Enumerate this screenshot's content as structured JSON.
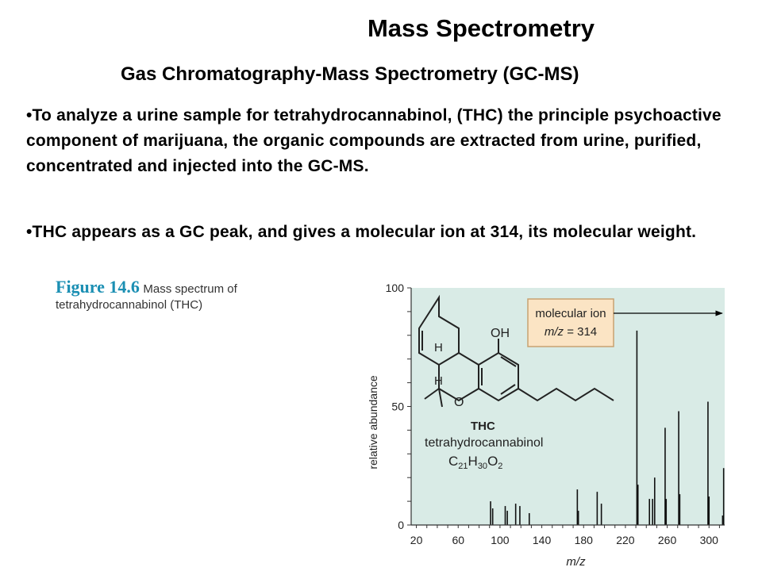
{
  "slide": {
    "title": "Mass Spectrometry",
    "subtitle": "Gas Chromatography-Mass Spectrometry (GC-MS)",
    "bullets": [
      "•To analyze a urine sample for tetrahydrocannabinol, (THC) the principle psychoactive component of marijuana, the organic compounds are extracted from urine, purified, concentrated and injected into the GC-MS.",
      "•THC appears as a GC peak, and gives a molecular ion at 314, its molecular weight."
    ]
  },
  "figure": {
    "number": "Figure 14.6",
    "caption_line1": "Mass spectrum of",
    "caption_line2": "tetrahydrocannabinol (THC)"
  },
  "molecule": {
    "abbrev": "THC",
    "name": "tetrahydrocannabinol",
    "formula_c": "C",
    "formula_c_sub": "21",
    "formula_h": "H",
    "formula_h_sub": "30",
    "formula_o": "O",
    "formula_o_sub": "2",
    "oh_label": "OH",
    "o_label": "O",
    "h_label": "H"
  },
  "colors": {
    "plot_background": "#d9ebe6",
    "figure_blue": "#1b8fb3",
    "callout_fill": "#fbe4c4",
    "callout_border": "#c8a271"
  },
  "chart_data": {
    "type": "bar",
    "xlabel": "m/z",
    "ylabel": "relative abundance",
    "xlim": [
      15,
      315
    ],
    "ylim": [
      0,
      100
    ],
    "xticks": [
      20,
      60,
      100,
      140,
      180,
      220,
      260,
      300
    ],
    "yticks": [
      0,
      50,
      100
    ],
    "grid": false,
    "annotation": {
      "line1": "molecular ion",
      "line2_prefix": "m/z",
      "line2_value": "= 314",
      "x": 314,
      "y": 100
    },
    "peaks": [
      {
        "x": 91,
        "y": 10
      },
      {
        "x": 93,
        "y": 7
      },
      {
        "x": 105,
        "y": 8
      },
      {
        "x": 107,
        "y": 6
      },
      {
        "x": 115,
        "y": 9
      },
      {
        "x": 119,
        "y": 8
      },
      {
        "x": 128,
        "y": 5
      },
      {
        "x": 174,
        "y": 15
      },
      {
        "x": 175,
        "y": 6
      },
      {
        "x": 193,
        "y": 14
      },
      {
        "x": 197,
        "y": 9
      },
      {
        "x": 231,
        "y": 82
      },
      {
        "x": 232,
        "y": 17
      },
      {
        "x": 243,
        "y": 11
      },
      {
        "x": 246,
        "y": 11
      },
      {
        "x": 248,
        "y": 20
      },
      {
        "x": 258,
        "y": 41
      },
      {
        "x": 259,
        "y": 11
      },
      {
        "x": 271,
        "y": 48
      },
      {
        "x": 272,
        "y": 13
      },
      {
        "x": 299,
        "y": 52
      },
      {
        "x": 300,
        "y": 12
      },
      {
        "x": 313,
        "y": 4
      },
      {
        "x": 314,
        "y": 24
      }
    ]
  }
}
